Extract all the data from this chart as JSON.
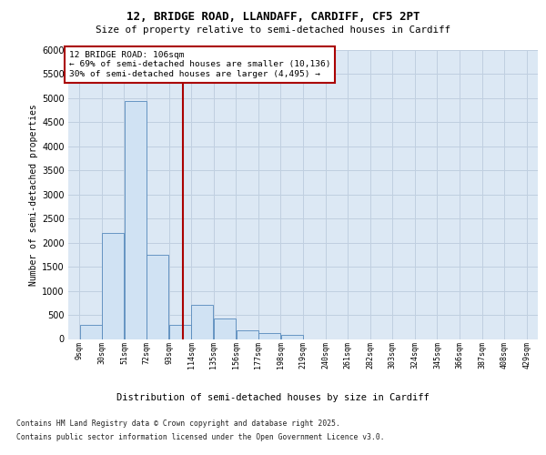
{
  "title_line1": "12, BRIDGE ROAD, LLANDAFF, CARDIFF, CF5 2PT",
  "title_line2": "Size of property relative to semi-detached houses in Cardiff",
  "xlabel": "Distribution of semi-detached houses by size in Cardiff",
  "ylabel": "Number of semi-detached properties",
  "bin_labels": [
    "9sqm",
    "30sqm",
    "51sqm",
    "72sqm",
    "93sqm",
    "114sqm",
    "135sqm",
    "156sqm",
    "177sqm",
    "198sqm",
    "219sqm",
    "240sqm",
    "261sqm",
    "282sqm",
    "303sqm",
    "324sqm",
    "345sqm",
    "366sqm",
    "387sqm",
    "408sqm",
    "429sqm"
  ],
  "bin_edges": [
    9,
    30,
    51,
    72,
    93,
    114,
    135,
    156,
    177,
    198,
    219,
    240,
    261,
    282,
    303,
    324,
    345,
    366,
    387,
    408,
    429
  ],
  "bar_heights": [
    300,
    2200,
    4950,
    1750,
    300,
    700,
    420,
    175,
    130,
    80,
    0,
    0,
    0,
    0,
    0,
    0,
    0,
    0,
    0,
    0
  ],
  "bar_color": "#d0e2f3",
  "bar_edge_color": "#5588bb",
  "ylim_max": 6000,
  "yticks": [
    0,
    500,
    1000,
    1500,
    2000,
    2500,
    3000,
    3500,
    4000,
    4500,
    5000,
    5500,
    6000
  ],
  "property_size": 106,
  "property_label": "12 BRIDGE ROAD: 106sqm",
  "pct_smaller": 69,
  "count_smaller": 10136,
  "pct_larger": 30,
  "count_larger": 4495,
  "vline_color": "#aa0000",
  "annotation_box_edgecolor": "#aa0000",
  "grid_color": "#c0cfe0",
  "bg_color": "#dce8f4",
  "footnote_line1": "Contains HM Land Registry data © Crown copyright and database right 2025.",
  "footnote_line2": "Contains public sector information licensed under the Open Government Licence v3.0."
}
